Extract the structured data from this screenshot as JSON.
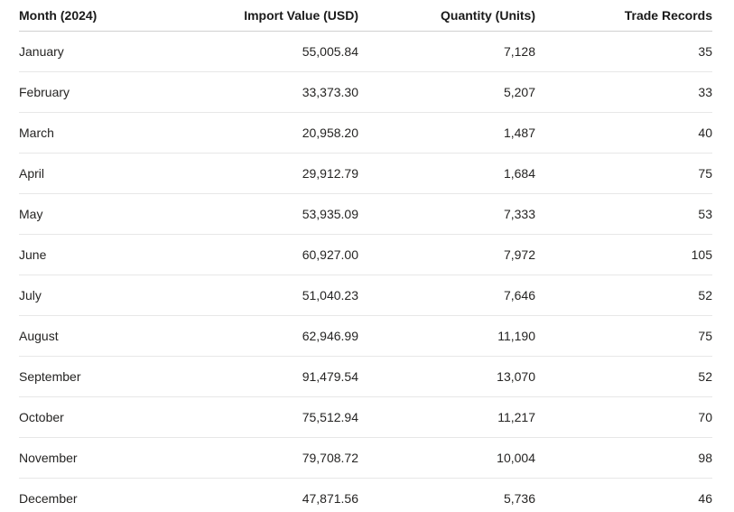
{
  "colors": {
    "background": "#ffffff",
    "header_text": "#1a1a1a",
    "cell_text": "#252423",
    "header_border": "#d1d1d1",
    "row_border": "#e7e7e7"
  },
  "table": {
    "columns": [
      {
        "label": "Month (2024)",
        "align": "left"
      },
      {
        "label": "Import Value (USD)",
        "align": "right"
      },
      {
        "label": "Quantity (Units)",
        "align": "right"
      },
      {
        "label": "Trade Records",
        "align": "right"
      }
    ],
    "rows": [
      [
        "January",
        "55,005.84",
        "7,128",
        "35"
      ],
      [
        "February",
        "33,373.30",
        "5,207",
        "33"
      ],
      [
        "March",
        "20,958.20",
        "1,487",
        "40"
      ],
      [
        "April",
        "29,912.79",
        "1,684",
        "75"
      ],
      [
        "May",
        "53,935.09",
        "7,333",
        "53"
      ],
      [
        "June",
        "60,927.00",
        "7,972",
        "105"
      ],
      [
        "July",
        "51,040.23",
        "7,646",
        "52"
      ],
      [
        "August",
        "62,946.99",
        "11,190",
        "75"
      ],
      [
        "September",
        "91,479.54",
        "13,070",
        "52"
      ],
      [
        "October",
        "75,512.94",
        "11,217",
        "70"
      ],
      [
        "November",
        "79,708.72",
        "10,004",
        "98"
      ],
      [
        "December",
        "47,871.56",
        "5,736",
        "46"
      ]
    ]
  },
  "chart_data": {
    "type": "table",
    "columns": [
      "Month (2024)",
      "Import Value (USD)",
      "Quantity (Units)",
      "Trade Records"
    ],
    "rows": [
      [
        "January",
        55005.84,
        7128,
        35
      ],
      [
        "February",
        33373.3,
        5207,
        33
      ],
      [
        "March",
        20958.2,
        1487,
        40
      ],
      [
        "April",
        29912.79,
        1684,
        75
      ],
      [
        "May",
        53935.09,
        7333,
        53
      ],
      [
        "June",
        60927.0,
        7972,
        105
      ],
      [
        "July",
        51040.23,
        7646,
        52
      ],
      [
        "August",
        62946.99,
        11190,
        75
      ],
      [
        "September",
        91479.54,
        13070,
        52
      ],
      [
        "October",
        75512.94,
        11217,
        70
      ],
      [
        "November",
        79708.72,
        10004,
        98
      ],
      [
        "December",
        47871.56,
        5736,
        46
      ]
    ]
  }
}
